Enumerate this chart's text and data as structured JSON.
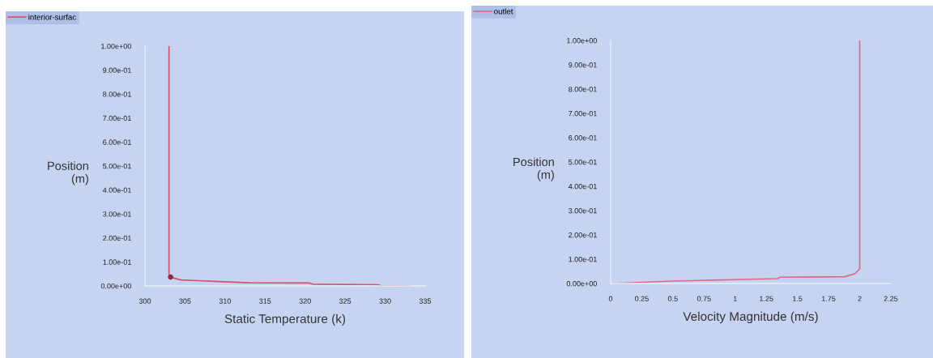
{
  "chart_data": [
    {
      "type": "line",
      "xlabel": "Static Temperature (k)",
      "ylabel": "Position (m)",
      "legend": "top left",
      "xlim": [
        300,
        335
      ],
      "ylim": [
        0,
        1
      ],
      "xticks": [
        300,
        305,
        310,
        315,
        320,
        325,
        330,
        335
      ],
      "yticks": [
        {
          "value": 0,
          "label": "0.00e+00"
        },
        {
          "value": 0.1,
          "label": "1.00e-01"
        },
        {
          "value": 0.2,
          "label": "2.00e-01"
        },
        {
          "value": 0.3,
          "label": "3.00e-01"
        },
        {
          "value": 0.4,
          "label": "4.00e-01"
        },
        {
          "value": 0.5,
          "label": "5.00e-01"
        },
        {
          "value": 0.6,
          "label": "6.00e-01"
        },
        {
          "value": 0.7,
          "label": "7.00e-01"
        },
        {
          "value": 0.8,
          "label": "8.00e-01"
        },
        {
          "value": 0.9,
          "label": "9.00e-01"
        },
        {
          "value": 1,
          "label": "1.00e+00"
        }
      ],
      "series": [
        {
          "name": "interior-surfac",
          "color": "#d9506e",
          "x": [
            303.0,
            303.0,
            303.0,
            303.3,
            304.5,
            308.0,
            313.0,
            320.5,
            321.0,
            329.0,
            329.5,
            333.0
          ],
          "values": [
            1.0,
            0.5,
            0.04,
            0.035,
            0.025,
            0.02,
            0.013,
            0.012,
            0.007,
            0.005,
            0.001,
            0.0
          ]
        },
        {
          "type": "scatter",
          "marker": "circle",
          "color": "#8a2a3e",
          "x": [
            303.2
          ],
          "values": [
            0.037
          ]
        }
      ]
    },
    {
      "type": "line",
      "xlabel": "Velocity Magnitude (m/s)",
      "ylabel": "Position (m)",
      "legend": "top left",
      "xlim": [
        0,
        2.25
      ],
      "ylim": [
        0,
        1
      ],
      "xticks": [
        0,
        0.25,
        0.5,
        0.75,
        1,
        1.25,
        1.5,
        1.75,
        2,
        2.25
      ],
      "yticks": [
        {
          "value": 0,
          "label": "0.00e+00"
        },
        {
          "value": 0.1,
          "label": "1.00e-01"
        },
        {
          "value": 0.2,
          "label": "2.00e-01"
        },
        {
          "value": 0.3,
          "label": "3.00e-01"
        },
        {
          "value": 0.4,
          "label": "4.00e-01"
        },
        {
          "value": 0.5,
          "label": "5.00e-01"
        },
        {
          "value": 0.6,
          "label": "6.00e-01"
        },
        {
          "value": 0.7,
          "label": "7.00e-01"
        },
        {
          "value": 0.8,
          "label": "8.00e-01"
        },
        {
          "value": 0.9,
          "label": "9.00e-01"
        },
        {
          "value": 1,
          "label": "1.00e+00"
        }
      ],
      "series": [
        {
          "name": "outlet",
          "color": "#dd6a84",
          "x": [
            0.02,
            0.25,
            0.5,
            0.82,
            1.34,
            1.36,
            1.88,
            1.96,
            2.0,
            2.0,
            2.0
          ],
          "values": [
            0.0,
            0.005,
            0.01,
            0.014,
            0.02,
            0.026,
            0.028,
            0.04,
            0.06,
            0.5,
            1.0
          ]
        }
      ]
    }
  ]
}
